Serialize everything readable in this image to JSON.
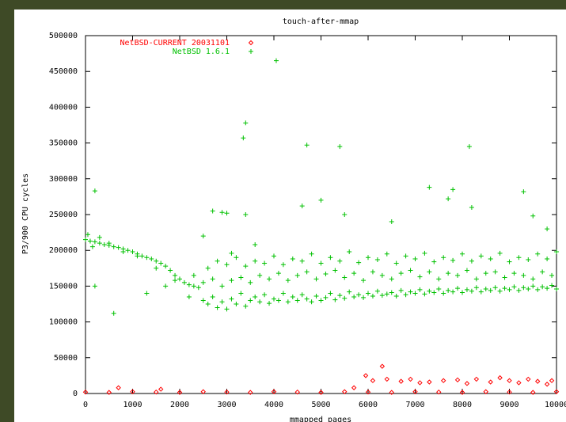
{
  "chart_data": {
    "type": "scatter",
    "title": "touch-after-mmap",
    "x_label": "mmapped pages",
    "y_label": "P3/900 CPU cycles",
    "xlim": [
      0,
      10000
    ],
    "xticks": [
      0,
      1000,
      2000,
      3000,
      4000,
      5000,
      6000,
      7000,
      8000,
      9000,
      10000
    ],
    "ylim": [
      0,
      500000
    ],
    "yticks": [
      0,
      50000,
      100000,
      150000,
      200000,
      250000,
      300000,
      350000,
      400000,
      450000,
      500000
    ],
    "legend": "top-left",
    "series": [
      {
        "name": "NetBSD-CURRENT 20031101",
        "color": "#ff0000",
        "marker": "diamond",
        "x": [
          0,
          500,
          1000,
          1500,
          2000,
          2500,
          3000,
          3500,
          4000,
          4500,
          5000,
          5500,
          6000,
          6500,
          7000,
          7500,
          8000,
          8500,
          9000,
          9500,
          10000,
          700,
          1600,
          5700,
          5950,
          6300,
          6100,
          6400,
          6700,
          6900,
          7100,
          7300,
          7600,
          7900,
          8100,
          8300,
          8600,
          8800,
          9000,
          9200,
          9400,
          9600,
          9800,
          9900
        ],
        "values": [
          2000,
          1500,
          2500,
          2000,
          1500,
          2500,
          2000,
          1500,
          2500,
          2000,
          1500,
          2500,
          2000,
          1500,
          2500,
          2000,
          1500,
          2500,
          2000,
          1500,
          2500,
          8000,
          6000,
          8000,
          25000,
          38000,
          18000,
          20000,
          17000,
          20000,
          15000,
          16000,
          18000,
          19000,
          14000,
          20000,
          16000,
          22000,
          18000,
          15000,
          20000,
          17000,
          13000,
          18000
        ]
      },
      {
        "name": "NetBSD 1.6.1",
        "color": "#00c000",
        "marker": "plus",
        "x": [
          0,
          100,
          200,
          300,
          400,
          500,
          600,
          700,
          800,
          900,
          1000,
          1100,
          1200,
          1300,
          1400,
          1500,
          1600,
          1700,
          1800,
          1900,
          2000,
          2100,
          2200,
          2300,
          2400,
          50,
          150,
          300,
          500,
          800,
          1100,
          1500,
          1900,
          2200,
          2300,
          2500,
          2600,
          2700,
          2800,
          2900,
          3000,
          3100,
          3200,
          3300,
          3400,
          3500,
          3600,
          3700,
          3800,
          3900,
          4000,
          4100,
          4200,
          4300,
          4400,
          4500,
          4600,
          4700,
          4800,
          4900,
          5000,
          5100,
          5200,
          5300,
          5400,
          5500,
          5600,
          5700,
          5800,
          5900,
          6000,
          6100,
          6200,
          6300,
          6400,
          6500,
          6600,
          6700,
          6800,
          6900,
          7000,
          7100,
          7200,
          7300,
          7400,
          7500,
          7600,
          7700,
          7800,
          7900,
          8000,
          8100,
          8200,
          8300,
          8400,
          8500,
          8600,
          8700,
          8800,
          8900,
          9000,
          9100,
          9200,
          9300,
          9400,
          9500,
          9600,
          9700,
          9800,
          9900,
          10000,
          2500,
          2700,
          2900,
          3100,
          3300,
          3500,
          3700,
          3900,
          4100,
          4300,
          4500,
          4700,
          4900,
          5100,
          5300,
          5500,
          5700,
          5900,
          6100,
          6300,
          6500,
          6700,
          6900,
          7100,
          7300,
          7500,
          7700,
          7900,
          8100,
          8300,
          8500,
          8700,
          8900,
          9100,
          9300,
          9500,
          9700,
          9900,
          2600,
          2800,
          3000,
          3200,
          3400,
          3600,
          3800,
          4000,
          4200,
          4400,
          4600,
          4800,
          5000,
          5200,
          5400,
          5600,
          5800,
          6000,
          6200,
          6400,
          6600,
          6800,
          7000,
          7200,
          7400,
          7600,
          7800,
          8000,
          8200,
          8400,
          8600,
          8800,
          9000,
          9200,
          9400,
          9600,
          9800,
          10000,
          3400,
          3350,
          4050,
          4700,
          5400,
          8150,
          7300,
          7800,
          9300,
          200,
          600,
          200,
          1300,
          2700,
          2900,
          3000,
          3400,
          3600,
          4600,
          5000,
          5500,
          6500,
          7700,
          8200,
          9500,
          9800,
          2500,
          3100,
          1700
        ],
        "values": [
          215000,
          213000,
          212000,
          210000,
          208000,
          207000,
          205000,
          204000,
          202000,
          200000,
          198000,
          195000,
          192000,
          190000,
          188000,
          185000,
          182000,
          178000,
          172000,
          165000,
          160000,
          155000,
          152000,
          150000,
          148000,
          222000,
          205000,
          218000,
          210000,
          198000,
          192000,
          175000,
          158000,
          135000,
          165000,
          130000,
          125000,
          135000,
          120000,
          128000,
          118000,
          132000,
          125000,
          140000,
          122000,
          130000,
          135000,
          128000,
          138000,
          126000,
          132000,
          130000,
          140000,
          128000,
          135000,
          130000,
          138000,
          132000,
          128000,
          136000,
          130000,
          134000,
          140000,
          131000,
          137000,
          133000,
          142000,
          135000,
          138000,
          134000,
          140000,
          136000,
          143000,
          137000,
          139000,
          141000,
          136000,
          144000,
          138000,
          142000,
          140000,
          145000,
          139000,
          143000,
          141000,
          146000,
          140000,
          144000,
          142000,
          147000,
          141000,
          145000,
          143000,
          148000,
          142000,
          146000,
          144000,
          148000,
          143000,
          147000,
          145000,
          149000,
          144000,
          148000,
          146000,
          150000,
          145000,
          149000,
          147000,
          151000,
          146000,
          155000,
          160000,
          150000,
          158000,
          162000,
          155000,
          165000,
          160000,
          168000,
          158000,
          165000,
          170000,
          160000,
          167000,
          172000,
          162000,
          168000,
          158000,
          170000,
          165000,
          160000,
          168000,
          172000,
          163000,
          170000,
          160000,
          168000,
          165000,
          172000,
          160000,
          168000,
          170000,
          162000,
          168000,
          165000,
          160000,
          170000,
          165000,
          175000,
          185000,
          180000,
          190000,
          178000,
          185000,
          182000,
          192000,
          180000,
          188000,
          185000,
          195000,
          182000,
          190000,
          185000,
          198000,
          183000,
          190000,
          187000,
          195000,
          182000,
          192000,
          188000,
          196000,
          184000,
          190000,
          186000,
          195000,
          185000,
          192000,
          188000,
          196000,
          184000,
          190000,
          187000,
          195000,
          188000,
          198000,
          378000,
          357000,
          465000,
          347000,
          345000,
          345000,
          288000,
          285000,
          282000,
          283000,
          112000,
          150000,
          140000,
          255000,
          253000,
          252000,
          250000,
          208000,
          262000,
          270000,
          250000,
          240000,
          272000,
          260000,
          248000,
          230000,
          220000,
          196000,
          150000
        ]
      }
    ]
  }
}
